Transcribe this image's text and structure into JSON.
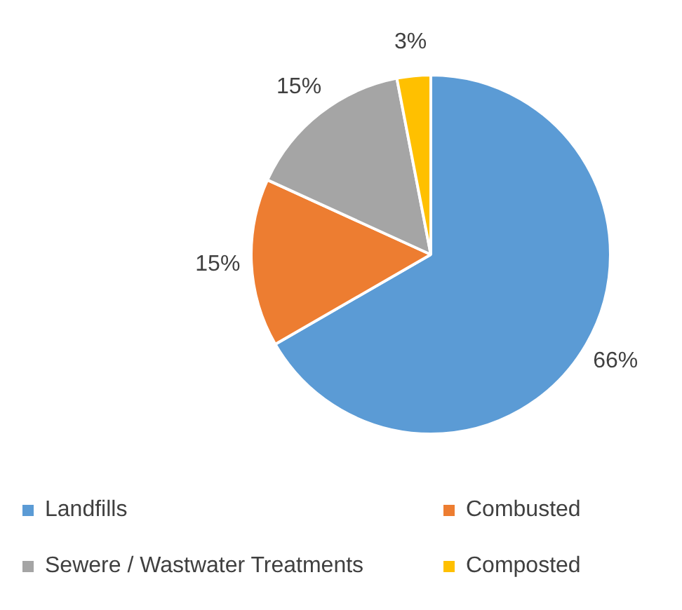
{
  "chart_data": {
    "type": "pie",
    "categories": [
      "Landfills",
      "Combusted",
      "Sewere / Wastwater Treatments",
      "Composted"
    ],
    "values": [
      66,
      15,
      15,
      3
    ],
    "value_labels": [
      "66%",
      "15%",
      "15%",
      "3%"
    ],
    "colors": [
      "#5b9bd5",
      "#ed7d31",
      "#a5a5a5",
      "#ffc000"
    ],
    "legend": "bottom"
  }
}
